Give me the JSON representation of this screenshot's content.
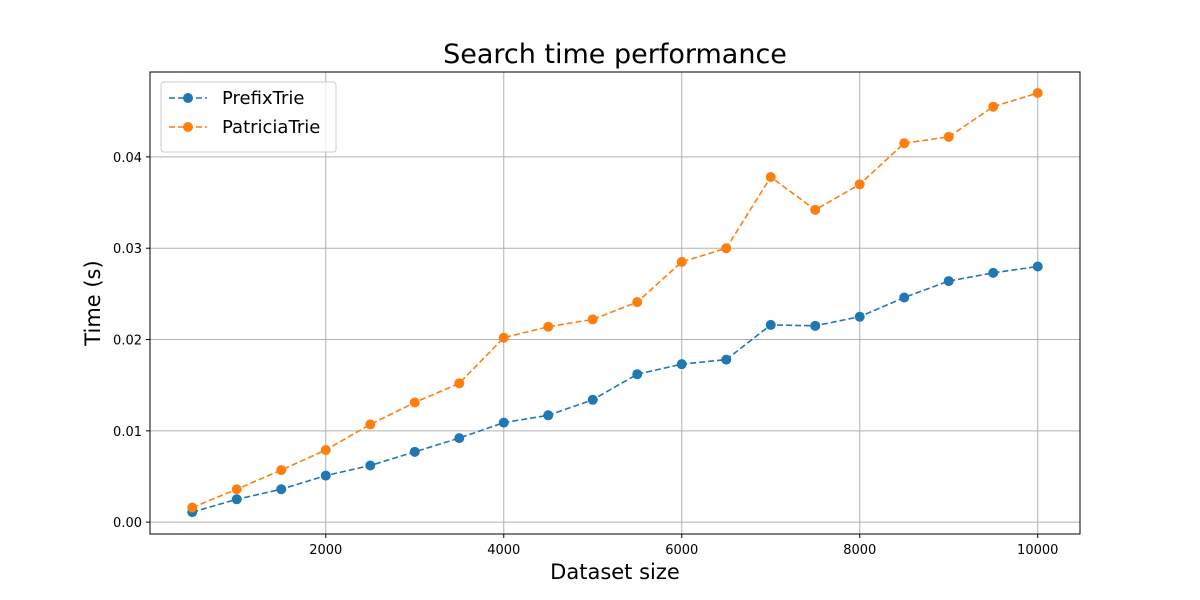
{
  "chart_data": {
    "type": "line",
    "title": "Search time performance",
    "xlabel": "Dataset size",
    "ylabel": "Time (s)",
    "grid": true,
    "legend_position": "top-left",
    "xlim": [
      25,
      10475
    ],
    "ylim": [
      -0.0013,
      0.0493
    ],
    "xticks": [
      2000,
      4000,
      6000,
      8000,
      10000
    ],
    "xtick_labels": [
      "2000",
      "4000",
      "6000",
      "8000",
      "10000"
    ],
    "yticks": [
      0.0,
      0.01,
      0.02,
      0.03,
      0.04
    ],
    "ytick_labels": [
      "0.00",
      "0.01",
      "0.02",
      "0.03",
      "0.04"
    ],
    "x": [
      500,
      1000,
      1500,
      2000,
      2500,
      3000,
      3500,
      4000,
      4500,
      5000,
      5500,
      6000,
      6500,
      7000,
      7500,
      8000,
      8500,
      9000,
      9500,
      10000
    ],
    "series": [
      {
        "name": "PrefixTrie",
        "color": "#1f77b4",
        "marker": "circle",
        "linestyle": "dashed",
        "values": [
          0.0011,
          0.0025,
          0.0036,
          0.0051,
          0.0062,
          0.0077,
          0.0092,
          0.0109,
          0.0117,
          0.0134,
          0.0162,
          0.0173,
          0.0178,
          0.0216,
          0.0215,
          0.0225,
          0.0246,
          0.0264,
          0.0273,
          0.028
        ]
      },
      {
        "name": "PatriciaTrie",
        "color": "#ff7f0e",
        "marker": "circle",
        "linestyle": "dashed",
        "values": [
          0.0016,
          0.0036,
          0.0057,
          0.0079,
          0.0107,
          0.0131,
          0.0152,
          0.0202,
          0.0214,
          0.0222,
          0.0241,
          0.0285,
          0.03,
          0.0378,
          0.0342,
          0.037,
          0.0415,
          0.0422,
          0.0455,
          0.047
        ]
      }
    ]
  }
}
